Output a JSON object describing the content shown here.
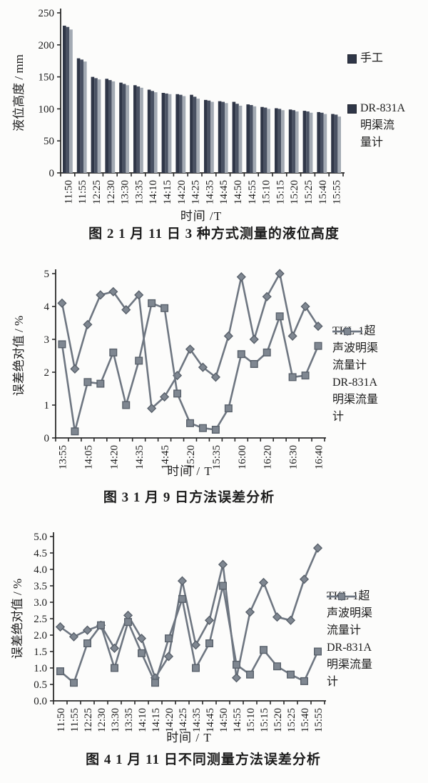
{
  "colors": {
    "text": "#1c1c1c",
    "axis": "#2a2a2a",
    "bar_dark": "#2f3647",
    "bar_mid": "#4a5263",
    "bar_light": "#a3aab3",
    "line": "#6e7681",
    "marker_fill": "#7f8791",
    "marker_stroke": "#59616b"
  },
  "chart_data": [
    {
      "type": "bar",
      "title": "图 2  1 月 11 日 3 种方式测量的液位高度",
      "xlabel": "时间 /T",
      "ylabel": "液位高度 / mm",
      "ylim": [
        0,
        250
      ],
      "ytick_step": 50,
      "ytick_decimals": 0,
      "grid": false,
      "legend_position": "right",
      "categories": [
        "11:50",
        "11:55",
        "12:25",
        "12:30",
        "13:30",
        "13:35",
        "14:10",
        "14:15",
        "14:20",
        "14:25",
        "14:35",
        "14:45",
        "14:50",
        "14:55",
        "15:10",
        "15:15",
        "15:20",
        "15:25",
        "15:40",
        "15:55"
      ],
      "series": [
        {
          "name": "手工",
          "values": [
            230,
            179,
            150,
            147,
            141,
            137,
            130,
            125,
            123,
            122,
            114,
            112,
            111,
            107,
            103,
            101,
            99,
            97,
            95,
            92
          ]
        },
        {
          "name": "",
          "values": [
            228,
            177,
            148,
            145,
            139,
            135,
            128,
            124,
            122,
            119,
            113,
            111,
            108,
            106,
            102,
            100,
            98,
            96,
            94,
            91
          ]
        },
        {
          "name": "DR-831A 明渠流量计",
          "values": [
            224,
            174,
            146,
            143,
            137,
            133,
            126,
            123,
            120,
            116,
            111,
            109,
            105,
            104,
            100,
            98,
            96,
            94,
            92,
            88
          ]
        }
      ],
      "legend": [
        {
          "swatch": "bar",
          "lines": [
            "手工"
          ]
        },
        {
          "swatch": "bar",
          "lines": [
            "DR-831A",
            "明渠流",
            "量计"
          ]
        }
      ]
    },
    {
      "type": "line",
      "title": "图 3  1 月 9 日方法误差分析",
      "xlabel": "时间 / T",
      "ylabel": "误差绝对值 / %",
      "ylim": [
        0,
        5
      ],
      "ytick_step": 1,
      "ytick_decimals": 0,
      "grid": false,
      "legend_position": "right",
      "categories": [
        "13:55",
        "",
        "14:05",
        "",
        "14:20",
        "",
        "14:35",
        "",
        "14:45",
        "",
        "15:20",
        "",
        "15:35",
        "",
        "16:00",
        "",
        "16:20",
        "",
        "16:30",
        "",
        "16:40"
      ],
      "series": [
        {
          "name": "TKL-1超声波明渠流量计",
          "marker": "diamond",
          "values": [
            4.1,
            2.1,
            3.45,
            4.35,
            4.45,
            3.9,
            4.35,
            0.9,
            1.25,
            1.9,
            2.7,
            2.15,
            1.85,
            3.1,
            4.9,
            3.0,
            4.3,
            5.0,
            3.1,
            4.0,
            3.4
          ]
        },
        {
          "name": "DR-831A明渠流量计",
          "marker": "square",
          "values": [
            2.85,
            0.2,
            1.7,
            1.65,
            2.6,
            1.0,
            2.35,
            4.1,
            3.95,
            1.35,
            0.45,
            0.3,
            0.25,
            0.9,
            2.55,
            2.25,
            2.6,
            3.7,
            1.85,
            1.9,
            2.8
          ]
        }
      ],
      "legend": [
        {
          "marker": "diamond",
          "lines": [
            "TKL-1超",
            "声波明渠",
            "流量计"
          ]
        },
        {
          "marker": "square",
          "lines": [
            "DR-831A",
            "明渠流量",
            "计"
          ]
        }
      ]
    },
    {
      "type": "line",
      "title": "图 4  1 月 11 日不同测量方法误差分析",
      "xlabel": "时间 / T",
      "ylabel": "误差绝对值 / %",
      "ylim": [
        0,
        5
      ],
      "ytick_step": 0.5,
      "ytick_decimals": 1,
      "grid": false,
      "legend_position": "right",
      "categories": [
        "11:50",
        "11:55",
        "12:25",
        "12:30",
        "13:30",
        "13:35",
        "14:10",
        "14:15",
        "14:20",
        "14:25",
        "14:35",
        "14:45",
        "14:50",
        "14:55",
        "15:10",
        "15:15",
        "15:20",
        "15:25",
        "15:40",
        "15:55"
      ],
      "series": [
        {
          "name": "TKL-1超声波明渠流量计",
          "marker": "diamond",
          "values": [
            2.25,
            1.95,
            2.15,
            2.3,
            1.6,
            2.6,
            1.9,
            0.7,
            1.35,
            3.65,
            1.7,
            2.45,
            4.15,
            0.7,
            2.7,
            3.6,
            2.55,
            2.45,
            3.7,
            4.65
          ]
        },
        {
          "name": "DR-831A明渠流量计",
          "marker": "square",
          "values": [
            0.9,
            0.55,
            1.75,
            2.3,
            1.0,
            2.4,
            1.45,
            0.55,
            1.9,
            3.1,
            1.0,
            1.75,
            3.5,
            1.1,
            0.8,
            1.55,
            1.05,
            0.8,
            0.6,
            1.5
          ]
        }
      ],
      "legend": [
        {
          "marker": "diamond",
          "lines": [
            "TKL-1超",
            "声波明渠",
            "流量计"
          ]
        },
        {
          "marker": "square",
          "lines": [
            "DR-831A",
            "明渠流量",
            "计"
          ]
        }
      ]
    }
  ]
}
